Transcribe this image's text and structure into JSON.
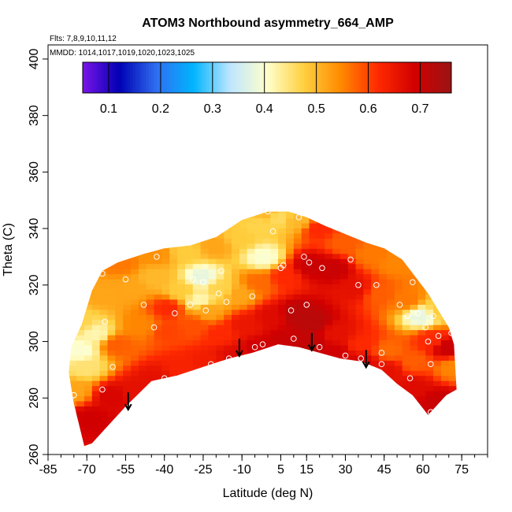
{
  "chart_data": {
    "type": "heatmap",
    "title": "ATOM3 Northbound asymmetry_664_AMP",
    "flights_note": "Flts: 7,8,9,10,11,12",
    "dates_note": "MMDD: 1014,1017,1019,1020,1023,1025",
    "xlabel": "Latitude (deg N)",
    "ylabel": "Theta (C)",
    "xlim": [
      -85,
      85
    ],
    "ylim": [
      260,
      405
    ],
    "x_ticks": [
      -85,
      -70,
      -55,
      -40,
      -25,
      -10,
      5,
      15,
      30,
      45,
      60,
      75
    ],
    "y_ticks": [
      260,
      280,
      300,
      320,
      340,
      360,
      380,
      400
    ],
    "colorbar": {
      "ticks": [
        0.1,
        0.2,
        0.3,
        0.4,
        0.5,
        0.6,
        0.7
      ],
      "range": [
        0.05,
        0.76
      ],
      "colors": [
        "#7b14e8",
        "#0000b4",
        "#2f6ff0",
        "#00b4ff",
        "#bfe6ff",
        "#ffffcc",
        "#ffd040",
        "#ff8a00",
        "#ff2a00",
        "#d20000",
        "#9a1414"
      ]
    },
    "envelope": {
      "top": [
        [
          -72,
          306
        ],
        [
          -68,
          318
        ],
        [
          -64,
          325
        ],
        [
          -58,
          328
        ],
        [
          -48,
          331
        ],
        [
          -40,
          333
        ],
        [
          -30,
          334
        ],
        [
          -20,
          337
        ],
        [
          -10,
          343
        ],
        [
          0,
          346
        ],
        [
          8,
          346
        ],
        [
          15,
          344
        ],
        [
          22,
          341
        ],
        [
          30,
          338
        ],
        [
          38,
          335
        ],
        [
          45,
          333
        ],
        [
          52,
          329
        ],
        [
          57,
          323
        ],
        [
          62,
          317
        ],
        [
          66,
          311
        ],
        [
          70,
          305
        ],
        [
          72,
          299
        ]
      ],
      "bottom": [
        [
          73,
          283
        ],
        [
          69,
          281
        ],
        [
          65,
          277
        ],
        [
          62,
          274
        ],
        [
          56,
          281
        ],
        [
          50,
          285
        ],
        [
          44,
          290
        ],
        [
          36,
          293
        ],
        [
          28,
          294
        ],
        [
          20,
          296
        ],
        [
          12,
          298
        ],
        [
          4,
          299
        ],
        [
          -6,
          296
        ],
        [
          -15,
          294
        ],
        [
          -25,
          291
        ],
        [
          -35,
          288
        ],
        [
          -45,
          286
        ],
        [
          -55,
          277
        ],
        [
          -62,
          270
        ],
        [
          -68,
          264
        ],
        [
          -71,
          263
        ],
        [
          -75,
          278
        ],
        [
          -77,
          289
        ],
        [
          -76,
          298
        ]
      ]
    },
    "field_points": [
      [
        -70,
        272,
        0.69
      ],
      [
        -62,
        280,
        0.68
      ],
      [
        -52,
        282,
        0.66
      ],
      [
        -45,
        286,
        0.66
      ],
      [
        -35,
        290,
        0.63
      ],
      [
        -25,
        292,
        0.64
      ],
      [
        -15,
        294,
        0.67
      ],
      [
        -5,
        297,
        0.69
      ],
      [
        5,
        299,
        0.7
      ],
      [
        15,
        298,
        0.71
      ],
      [
        25,
        295,
        0.69
      ],
      [
        35,
        292,
        0.68
      ],
      [
        45,
        289,
        0.66
      ],
      [
        55,
        283,
        0.67
      ],
      [
        65,
        278,
        0.7
      ],
      [
        -72,
        290,
        0.45
      ],
      [
        -68,
        302,
        0.42
      ],
      [
        -60,
        298,
        0.58
      ],
      [
        -50,
        305,
        0.55
      ],
      [
        -40,
        303,
        0.6
      ],
      [
        -30,
        305,
        0.59
      ],
      [
        -20,
        302,
        0.62
      ],
      [
        -10,
        305,
        0.65
      ],
      [
        0,
        308,
        0.67
      ],
      [
        10,
        309,
        0.72
      ],
      [
        16,
        306,
        0.72
      ],
      [
        25,
        302,
        0.66
      ],
      [
        35,
        298,
        0.62
      ],
      [
        45,
        296,
        0.57
      ],
      [
        55,
        292,
        0.58
      ],
      [
        62,
        300,
        0.62
      ],
      [
        68,
        297,
        0.7
      ],
      [
        70,
        290,
        0.55
      ],
      [
        -66,
        316,
        0.52
      ],
      [
        -55,
        318,
        0.52
      ],
      [
        -45,
        322,
        0.5
      ],
      [
        -35,
        317,
        0.48
      ],
      [
        -27,
        322,
        0.38
      ],
      [
        -20,
        318,
        0.47
      ],
      [
        -12,
        316,
        0.52
      ],
      [
        -5,
        320,
        0.57
      ],
      [
        5,
        322,
        0.62
      ],
      [
        15,
        326,
        0.7
      ],
      [
        24,
        325,
        0.7
      ],
      [
        32,
        318,
        0.66
      ],
      [
        42,
        316,
        0.58
      ],
      [
        52,
        314,
        0.56
      ],
      [
        58,
        308,
        0.38
      ],
      [
        65,
        310,
        0.48
      ],
      [
        -58,
        327,
        0.56
      ],
      [
        -45,
        330,
        0.54
      ],
      [
        -33,
        331,
        0.48
      ],
      [
        -22,
        333,
        0.52
      ],
      [
        -12,
        336,
        0.48
      ],
      [
        -5,
        340,
        0.47
      ],
      [
        3,
        343,
        0.46
      ],
      [
        10,
        342,
        0.5
      ],
      [
        18,
        339,
        0.62
      ],
      [
        28,
        334,
        0.58
      ],
      [
        38,
        330,
        0.56
      ],
      [
        48,
        327,
        0.55
      ],
      [
        -76,
        282,
        0.52
      ],
      [
        -74,
        296,
        0.4
      ],
      [
        -74,
        306,
        0.47
      ],
      [
        -3,
        329,
        0.4
      ],
      [
        -2,
        345,
        0.5
      ],
      [
        -28,
        314,
        0.42
      ],
      [
        -25,
        310,
        0.52
      ],
      [
        -40,
        311,
        0.62
      ]
    ],
    "markers": [
      [
        -75,
        281
      ],
      [
        -64,
        283
      ],
      [
        -60,
        291
      ],
      [
        -63,
        307
      ],
      [
        -64,
        324
      ],
      [
        -55,
        322
      ],
      [
        -48,
        313
      ],
      [
        -44,
        305
      ],
      [
        -43,
        330
      ],
      [
        -40,
        287
      ],
      [
        -36,
        310
      ],
      [
        -34,
        286
      ],
      [
        -30,
        313
      ],
      [
        -29,
        322
      ],
      [
        -25,
        321
      ],
      [
        -24,
        311
      ],
      [
        -22,
        292
      ],
      [
        -19,
        317
      ],
      [
        -18,
        325
      ],
      [
        -16,
        314
      ],
      [
        -15,
        294
      ],
      [
        -6,
        316
      ],
      [
        -5,
        298
      ],
      [
        -2,
        299
      ],
      [
        0,
        346
      ],
      [
        2,
        339
      ],
      [
        5,
        326
      ],
      [
        6,
        327
      ],
      [
        9,
        311
      ],
      [
        10,
        301
      ],
      [
        12,
        344
      ],
      [
        14,
        330
      ],
      [
        15,
        313
      ],
      [
        16,
        328
      ],
      [
        20,
        298
      ],
      [
        21,
        326
      ],
      [
        30,
        295
      ],
      [
        32,
        329
      ],
      [
        35,
        320
      ],
      [
        36,
        294
      ],
      [
        42,
        320
      ],
      [
        44,
        296
      ],
      [
        44,
        292
      ],
      [
        47,
        286
      ],
      [
        51,
        313
      ],
      [
        54,
        309
      ],
      [
        55,
        287
      ],
      [
        56,
        321
      ],
      [
        58,
        310
      ],
      [
        61,
        305
      ],
      [
        62,
        300
      ],
      [
        63,
        292
      ],
      [
        63,
        275
      ],
      [
        64,
        309
      ],
      [
        66,
        302
      ],
      [
        71,
        303
      ]
    ],
    "arrows": [
      [
        -54,
        282
      ],
      [
        -11,
        301
      ],
      [
        17,
        303
      ],
      [
        38,
        297
      ]
    ]
  }
}
